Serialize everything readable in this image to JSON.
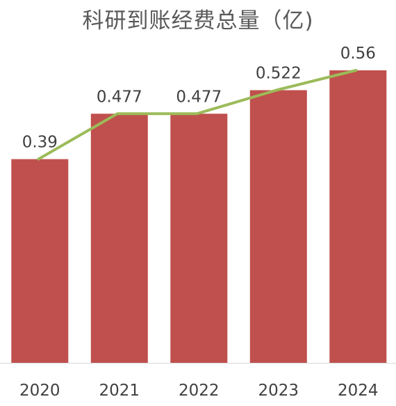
{
  "chart_data": {
    "type": "bar",
    "title": "科研到账经费总量（亿)",
    "categories": [
      "2020",
      "2021",
      "2022",
      "2023",
      "2024"
    ],
    "values": [
      0.39,
      0.477,
      0.477,
      0.522,
      0.56
    ],
    "data_labels": [
      "0.39",
      "0.477",
      "0.477",
      "0.522",
      "0.56"
    ],
    "overlay_line": true,
    "ylim": [
      0,
      0.56
    ],
    "grid": false,
    "legend": "none",
    "bar_color": "#c0504d",
    "line_color": "#9bbb59",
    "axis_color": "#d9d9d9"
  }
}
